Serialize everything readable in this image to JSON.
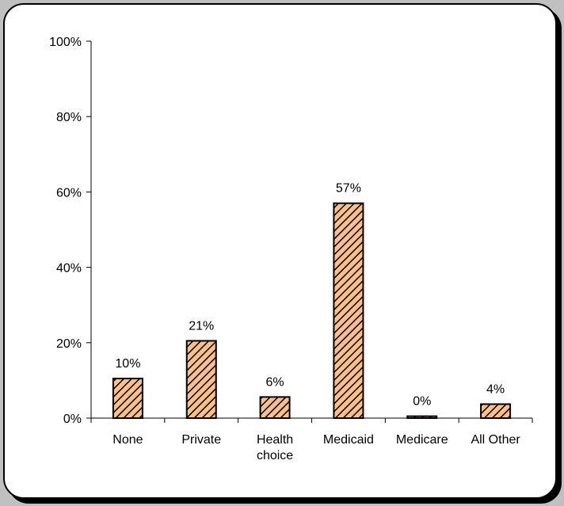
{
  "chart_data": {
    "type": "bar",
    "categories": [
      [
        "None"
      ],
      [
        "Private"
      ],
      [
        "Health",
        "choice"
      ],
      [
        "Medicaid"
      ],
      [
        "Medicare"
      ],
      [
        "All Other"
      ]
    ],
    "values": [
      10.5,
      20.5,
      5.6,
      57.0,
      0.5,
      3.7
    ],
    "data_labels": [
      "10%",
      "21%",
      "6%",
      "57%",
      "0%",
      "4%"
    ],
    "yticks": [
      0,
      20,
      40,
      60,
      80,
      100
    ],
    "ytick_labels": [
      "0%",
      "20%",
      "40%",
      "60%",
      "80%",
      "100%"
    ],
    "ylim": [
      0,
      100
    ],
    "title": "",
    "xlabel": "",
    "ylabel": "",
    "grid": false,
    "legend": "none",
    "bar_fill_color": "#fbc08a",
    "bar_hatch_color": "#000000",
    "bar_hatch": "diagonal-stripes"
  }
}
